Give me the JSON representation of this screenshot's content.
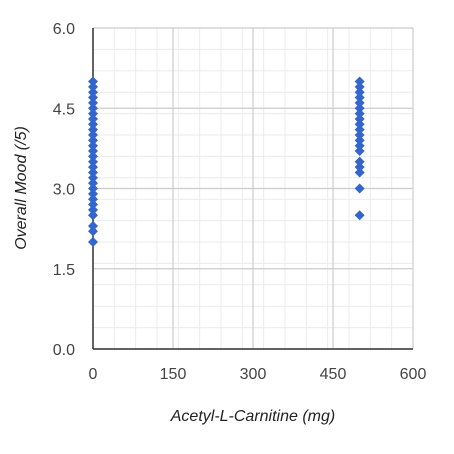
{
  "chart_data": {
    "type": "scatter",
    "title": "",
    "xlabel": "Acetyl-L-Carnitine (mg)",
    "ylabel": "Overall Mood (/5)",
    "xlim": [
      0,
      600
    ],
    "ylim": [
      0.0,
      6.0
    ],
    "x_ticks": [
      "0",
      "150",
      "300",
      "450",
      "600"
    ],
    "y_ticks": [
      "0.0",
      "1.5",
      "3.0",
      "4.5",
      "6.0"
    ],
    "grid": true,
    "minor_grid": true,
    "legend": "none",
    "marker": "diamond",
    "color": "#3366cc",
    "series": [
      {
        "points": [
          [
            0,
            2.0
          ],
          [
            0,
            2.2
          ],
          [
            0,
            2.3
          ],
          [
            0,
            2.5
          ],
          [
            0,
            2.6
          ],
          [
            0,
            2.7
          ],
          [
            0,
            2.8
          ],
          [
            0,
            2.9
          ],
          [
            0,
            3.0
          ],
          [
            0,
            3.1
          ],
          [
            0,
            3.2
          ],
          [
            0,
            3.3
          ],
          [
            0,
            3.4
          ],
          [
            0,
            3.5
          ],
          [
            0,
            3.6
          ],
          [
            0,
            3.7
          ],
          [
            0,
            3.8
          ],
          [
            0,
            3.9
          ],
          [
            0,
            4.0
          ],
          [
            0,
            4.1
          ],
          [
            0,
            4.2
          ],
          [
            0,
            4.3
          ],
          [
            0,
            4.4
          ],
          [
            0,
            4.5
          ],
          [
            0,
            4.6
          ],
          [
            0,
            4.7
          ],
          [
            0,
            4.8
          ],
          [
            0,
            4.9
          ],
          [
            0,
            5.0
          ],
          [
            500,
            2.5
          ],
          [
            500,
            3.0
          ],
          [
            500,
            3.3
          ],
          [
            500,
            3.4
          ],
          [
            500,
            3.5
          ],
          [
            500,
            3.7
          ],
          [
            500,
            3.8
          ],
          [
            500,
            3.9
          ],
          [
            500,
            4.0
          ],
          [
            500,
            4.1
          ],
          [
            500,
            4.2
          ],
          [
            500,
            4.3
          ],
          [
            500,
            4.4
          ],
          [
            500,
            4.5
          ],
          [
            500,
            4.6
          ],
          [
            500,
            4.7
          ],
          [
            500,
            4.8
          ],
          [
            500,
            4.9
          ],
          [
            500,
            5.0
          ]
        ]
      }
    ]
  }
}
